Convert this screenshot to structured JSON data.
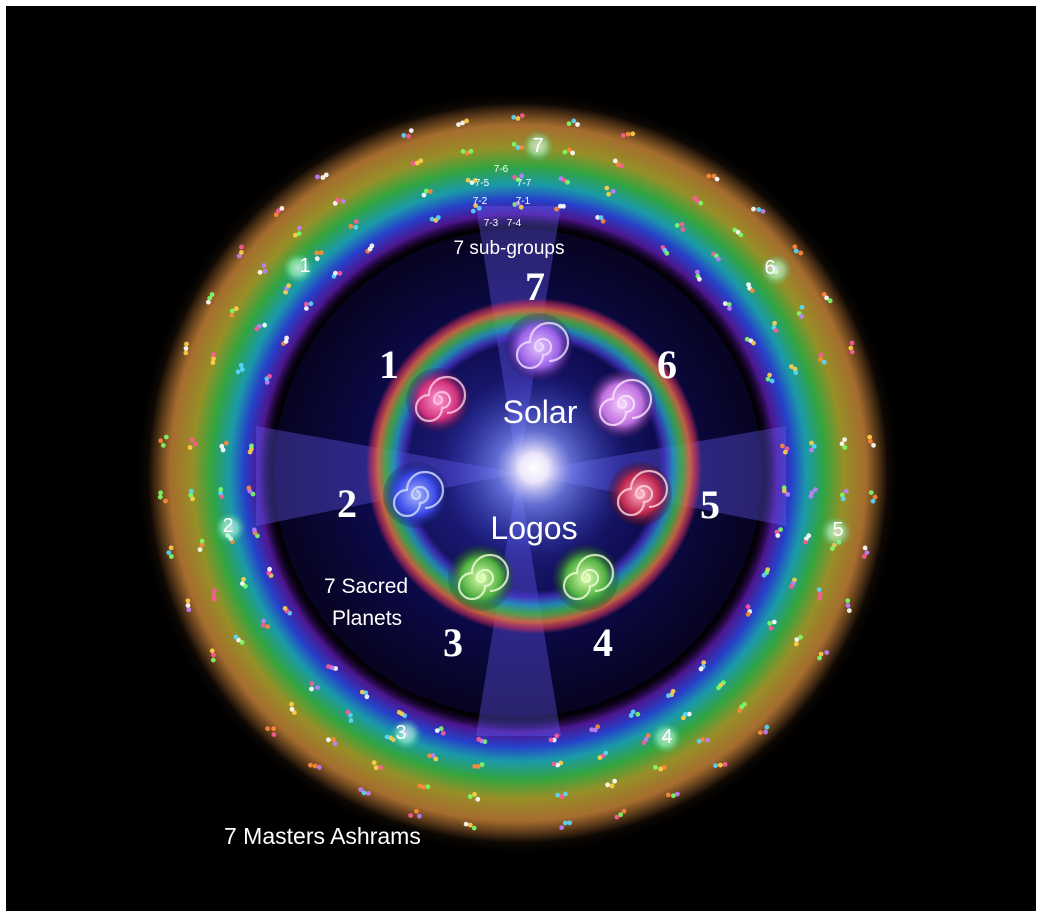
{
  "center": {
    "top": "Solar",
    "bottom": "Logos"
  },
  "planets": [
    "1",
    "2",
    "3",
    "4",
    "5",
    "6",
    "7"
  ],
  "ashrams": [
    "1",
    "2",
    "3",
    "4",
    "5",
    "6",
    "7"
  ],
  "subgroups": {
    "title": "7 sub-groups",
    "items": [
      "7-1",
      "7-2",
      "7-3",
      "7-4",
      "7-5",
      "7-6",
      "7-7"
    ]
  },
  "labels": {
    "sacred_planets_line1": "7 Sacred",
    "sacred_planets_line2": "Planets",
    "masters_ashrams": "7 Masters Ashrams"
  },
  "colors": {
    "background": "#000000",
    "outer_glow": "#d9a35a",
    "center_light": "#ffffff",
    "spiral_pink": "#e0408a",
    "spiral_blue": "#4f6cff",
    "spiral_green": "#6fdc4a",
    "spiral_violet": "#b070ff"
  }
}
